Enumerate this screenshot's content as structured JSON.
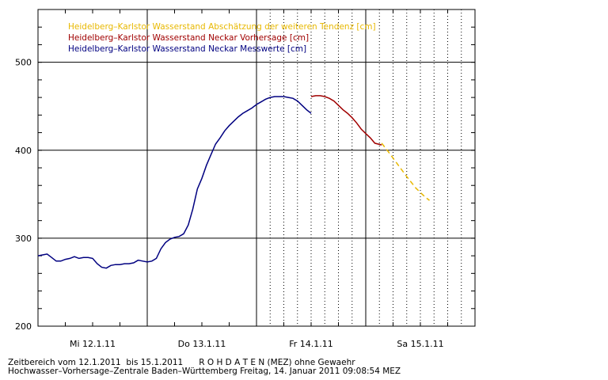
{
  "chart_data": {
    "type": "line",
    "title": "",
    "xlabel": "",
    "ylabel": "",
    "ylim": [
      200,
      560
    ],
    "y_ticks": [
      200,
      300,
      400,
      500
    ],
    "x_range_hours": [
      0,
      96
    ],
    "x_ticks": [
      {
        "label": "Mi 12.1.11",
        "hour": 12
      },
      {
        "label": "Do 13.1.11",
        "hour": 36
      },
      {
        "label": "Fr 14.1.11",
        "hour": 60
      },
      {
        "label": "Sa 15.1.11",
        "hour": 84
      }
    ],
    "grid": true,
    "legend_position": "top-left",
    "series": [
      {
        "name": "Heidelberg–Karlstor Wasserstand Abschätzung der weiteren Tendenz [cm]",
        "color": "#e8b800",
        "dashed": true,
        "points": [
          [
            75.5,
            408
          ],
          [
            77,
            398
          ],
          [
            79,
            384
          ],
          [
            81,
            370
          ],
          [
            83,
            357
          ],
          [
            85,
            347
          ],
          [
            86,
            343
          ]
        ]
      },
      {
        "name": "Heidelberg–Karlstor Wasserstand Neckar Vorhersage [cm]",
        "color": "#a00000",
        "dashed": false,
        "points": [
          [
            60,
            461
          ],
          [
            61,
            462
          ],
          [
            62,
            462
          ],
          [
            63,
            461
          ],
          [
            64,
            459
          ],
          [
            65,
            456
          ],
          [
            66,
            451
          ],
          [
            67,
            446
          ],
          [
            68,
            442
          ],
          [
            69,
            437
          ],
          [
            70,
            431
          ],
          [
            71,
            424
          ],
          [
            72,
            419
          ],
          [
            73,
            414
          ],
          [
            74,
            408
          ],
          [
            75.5,
            406
          ]
        ]
      },
      {
        "name": "Heidelberg–Karlstor Wasserstand Neckar Messwerte [cm]",
        "color": "#000080",
        "dashed": false,
        "points": [
          [
            0,
            280
          ],
          [
            1,
            281
          ],
          [
            2,
            282
          ],
          [
            3,
            278
          ],
          [
            4,
            274
          ],
          [
            5,
            274
          ],
          [
            6,
            276
          ],
          [
            7,
            277
          ],
          [
            8,
            279
          ],
          [
            9,
            277
          ],
          [
            10,
            278
          ],
          [
            11,
            278
          ],
          [
            12,
            277
          ],
          [
            13,
            271
          ],
          [
            14,
            267
          ],
          [
            15,
            266
          ],
          [
            16,
            269
          ],
          [
            17,
            270
          ],
          [
            18,
            270
          ],
          [
            19,
            271
          ],
          [
            20,
            271
          ],
          [
            21,
            272
          ],
          [
            22,
            275
          ],
          [
            23,
            274
          ],
          [
            24,
            273
          ],
          [
            25,
            274
          ],
          [
            26,
            277
          ],
          [
            27,
            288
          ],
          [
            28,
            295
          ],
          [
            29,
            299
          ],
          [
            30,
            301
          ],
          [
            31,
            302
          ],
          [
            32,
            305
          ],
          [
            33,
            315
          ],
          [
            34,
            333
          ],
          [
            35,
            356
          ],
          [
            36,
            368
          ],
          [
            37,
            383
          ],
          [
            38,
            395
          ],
          [
            39,
            407
          ],
          [
            40,
            414
          ],
          [
            41,
            422
          ],
          [
            42,
            428
          ],
          [
            43,
            433
          ],
          [
            44,
            438
          ],
          [
            45,
            442
          ],
          [
            46,
            445
          ],
          [
            47,
            448
          ],
          [
            48,
            452
          ],
          [
            49,
            455
          ],
          [
            50,
            458
          ],
          [
            51,
            460
          ],
          [
            52,
            461
          ],
          [
            53,
            461
          ],
          [
            54,
            461
          ],
          [
            55,
            460
          ],
          [
            56,
            459
          ],
          [
            57,
            456
          ],
          [
            58,
            451
          ],
          [
            59,
            446
          ],
          [
            60,
            442
          ]
        ]
      }
    ]
  },
  "footer": {
    "line1": "Zeitbereich vom 12.1.2011  bis 15.1.2011      R O H D A T E N (MEZ) ohne Gewaehr",
    "line2": "Hochwasser–Vorhersage–Zentrale Baden–Württemberg Freitag, 14. Januar 2011 09:08:54 MEZ"
  }
}
